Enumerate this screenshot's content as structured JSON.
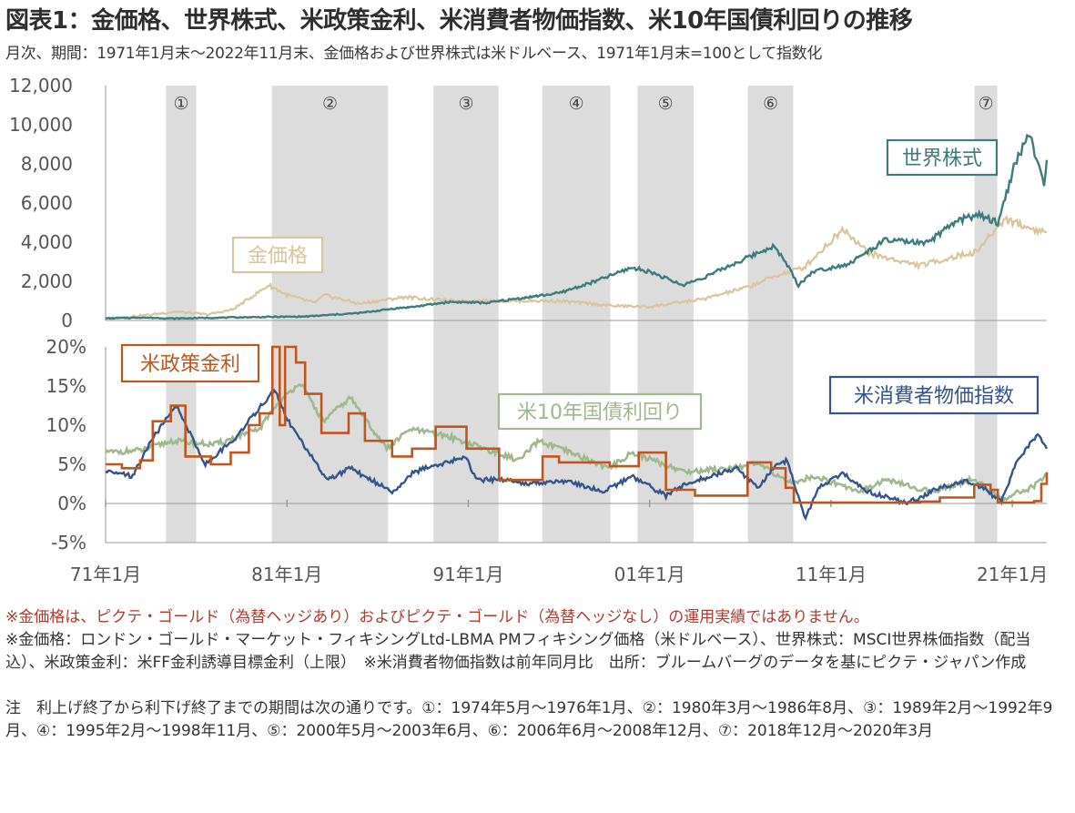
{
  "header": {
    "title": "図表1：金価格、世界株式、米政策金利、米消費者物価指数、米10年国債利回りの推移",
    "subtitle": "月次、期間：1971年1月末～2022年11月末、金価格および世界株式は米ドルベース、1971年1月末=100として指数化"
  },
  "chart_data": [
    {
      "type": "line",
      "ylim": [
        0,
        12000
      ],
      "yticks": [
        "0",
        "2,000",
        "4,000",
        "6,000",
        "8,000",
        "10,000",
        "12,000"
      ],
      "ytick_values": [
        0,
        2000,
        4000,
        6000,
        8000,
        10000,
        12000
      ],
      "x_range": [
        1971.0,
        2022.9
      ],
      "shaded_periods": [
        {
          "label": "①",
          "start": 1974.33,
          "end": 1976.0
        },
        {
          "label": "②",
          "start": 1980.17,
          "end": 1986.58
        },
        {
          "label": "③",
          "start": 1989.08,
          "end": 1992.67
        },
        {
          "label": "④",
          "start": 1995.08,
          "end": 1998.83
        },
        {
          "label": "⑤",
          "start": 2000.33,
          "end": 2003.42
        },
        {
          "label": "⑥",
          "start": 2006.42,
          "end": 2008.92
        },
        {
          "label": "⑦",
          "start": 2018.92,
          "end": 2020.17
        }
      ],
      "series": [
        {
          "name": "世界株式",
          "color": "#3e7b7c",
          "x": [
            1971,
            1973,
            1974.8,
            1977,
            1980,
            1982,
            1985,
            1987,
            1988,
            1990,
            1992,
            1994,
            1996,
            1998,
            2000,
            2001,
            2002.8,
            2004,
            2007.8,
            2008.5,
            2009.2,
            2010,
            2012,
            2014,
            2015.5,
            2016.2,
            2018,
            2019,
            2020.2,
            2020.6,
            2021,
            2021.9,
            2022.4,
            2022.75,
            2022.9
          ],
          "y": [
            100,
            150,
            100,
            140,
            180,
            200,
            380,
            620,
            700,
            950,
            900,
            1150,
            1400,
            2000,
            2700,
            2500,
            1800,
            2200,
            3800,
            3000,
            1800,
            2500,
            2900,
            4100,
            4000,
            3900,
            5100,
            5400,
            5000,
            6200,
            7600,
            9600,
            7900,
            7100,
            8200
          ]
        },
        {
          "name": "金価格",
          "color": "#d9c49c",
          "x": [
            1971,
            1973,
            1974.9,
            1976.6,
            1978,
            1980.0,
            1981,
            1982.5,
            1983.1,
            1985,
            1987.5,
            1990,
            1993,
            1996,
            1999,
            2001,
            2004,
            2006.4,
            2008,
            2009.5,
            2011.7,
            2013,
            2013.6,
            2015.9,
            2018,
            2019,
            2020.6,
            2022,
            2022.9
          ],
          "y": [
            100,
            250,
            450,
            300,
            550,
            1800,
            1300,
            900,
            1300,
            850,
            1200,
            1000,
            1000,
            1000,
            750,
            700,
            1100,
            1700,
            2300,
            2700,
            4700,
            3500,
            3300,
            2800,
            3300,
            3500,
            5200,
            4700,
            4500
          ]
        }
      ]
    },
    {
      "type": "line",
      "ylim": [
        -5,
        20
      ],
      "yticks": [
        "-5%",
        "0%",
        "5%",
        "10%",
        "15%",
        "20%"
      ],
      "ytick_values": [
        -5,
        0,
        5,
        10,
        15,
        20
      ],
      "xticks": [
        "71年1月",
        "81年1月",
        "91年1月",
        "01年1月",
        "11年1月",
        "21年1月"
      ],
      "xtick_values": [
        1971,
        1981,
        1991,
        2001,
        2011,
        2021
      ],
      "series": [
        {
          "name": "米政策金利",
          "color": "#c0561d",
          "x": [
            1971,
            1971.9,
            1972.9,
            1973.6,
            1974.6,
            1975.4,
            1976.8,
            1977.9,
            1978.9,
            1979.5,
            1980.2,
            1980.6,
            1980.9,
            1981.5,
            1982.0,
            1982.9,
            1984.4,
            1985.3,
            1986.8,
            1987.9,
            1989.2,
            1990.9,
            1992.7,
            1994.0,
            1995.1,
            1996.0,
            1998.8,
            2000.4,
            2001.9,
            2003.5,
            2004.4,
            2006.4,
            2007.7,
            2008.5,
            2008.95,
            2015.9,
            2017.0,
            2018.9,
            2019.8,
            2020.2,
            2022.2,
            2022.6,
            2022.9
          ],
          "y": [
            5,
            4.5,
            5.5,
            10.5,
            12.5,
            6,
            5,
            6.5,
            10,
            11.5,
            20,
            10,
            20,
            18,
            14,
            9,
            11.5,
            8,
            6,
            7,
            9.8,
            7,
            3,
            3,
            6,
            5.25,
            4.75,
            6.5,
            1.75,
            1,
            1,
            5.25,
            4.5,
            2,
            0.1,
            0.25,
            0.75,
            2.4,
            1.75,
            0.1,
            0.3,
            2.5,
            4
          ]
        },
        {
          "name": "米10年国債利回り",
          "color": "#9fb88e",
          "x": [
            1971,
            1973,
            1974.7,
            1977,
            1979.5,
            1980.2,
            1981.7,
            1983,
            1984.5,
            1986.5,
            1987.8,
            1990,
            1993.8,
            1994.9,
            1998.8,
            2000,
            2003,
            2007,
            2008.9,
            2010,
            2012.6,
            2014,
            2016.5,
            2018.8,
            2020.5,
            2022.2,
            2022.9
          ],
          "y": [
            6.5,
            6.8,
            8,
            7.5,
            9.5,
            12,
            15.5,
            10.5,
            13.5,
            7,
            9.5,
            8.5,
            5.5,
            8,
            4.5,
            6.5,
            4,
            5,
            2.5,
            3.5,
            1.6,
            3,
            1.5,
            3.1,
            0.6,
            2.2,
            3.9
          ]
        },
        {
          "name": "米消費者物価指数",
          "color": "#34548b",
          "x": [
            1971,
            1972.5,
            1973.5,
            1974.9,
            1976.5,
            1978,
            1980.3,
            1981.2,
            1983.2,
            1984.5,
            1986.8,
            1988,
            1990.8,
            1991.5,
            1993,
            1994.5,
            1996,
            1998.5,
            2000,
            2001.9,
            2003,
            2005.8,
            2007,
            2007.8,
            2008.6,
            2009.6,
            2010.3,
            2011.7,
            2013,
            2015.2,
            2017,
            2018.5,
            2019.5,
            2020.4,
            2021.2,
            2022.4,
            2022.9
          ],
          "y": [
            4,
            3.5,
            8,
            12.5,
            5,
            8,
            14.5,
            10,
            3,
            4.5,
            1.5,
            4,
            6,
            3,
            3,
            2.5,
            3,
            1.5,
            3.5,
            1,
            2.5,
            4.5,
            2,
            4.5,
            5.5,
            -2,
            2,
            3.8,
            1.5,
            0,
            2,
            2.8,
            1.8,
            0.2,
            5,
            9,
            7
          ]
        }
      ]
    }
  ],
  "labels": {
    "gold": "金価格",
    "world": "世界株式",
    "policy": "米政策金利",
    "bond": "米10年国債利回り",
    "cpi": "米消費者物価指数"
  },
  "notes": {
    "line1": "※金価格は、ピクテ・ゴールド（為替ヘッジあり）およびピクテ・ゴールド（為替ヘッジなし）の運用実績ではありません。",
    "line2": "※金価格：ロンドン・ゴールド・マーケット・フィキシングLtd-LBMA PMフィキシング価格（米ドルベース）、世界株式：MSCI世界株価指数（配当込）、米政策金利：米FF金利誘導目標金利（上限）　※米消費者物価指数は前年同月比　出所：ブルームバーグのデータを基にピクテ・ジャパン作成",
    "line3": "注　利上げ終了から利下げ終了までの期間は次の通りです。①：1974年5月～1976年1月、②：1980年3月～1986年8月、③：1989年2月～1992年9月、④：1995年2月～1998年11月、⑤：2000年5月～2003年6月、⑥：2006年6月～2008年12月、⑦：2018年12月～2020年3月"
  }
}
